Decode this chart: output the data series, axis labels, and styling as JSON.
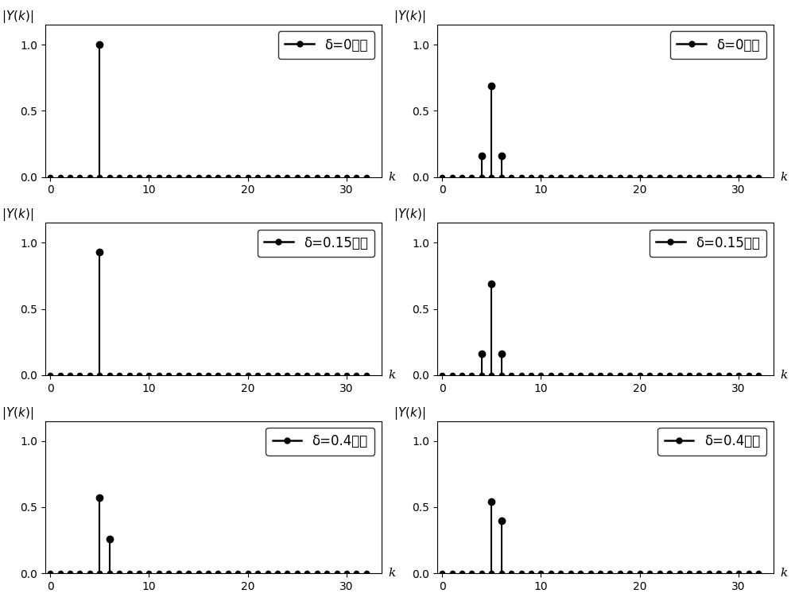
{
  "subplots": [
    {
      "title_legend": "δ=0无窗",
      "stems_k": [
        5
      ],
      "stems_v": [
        1.0
      ],
      "ylim": [
        0,
        1.15
      ]
    },
    {
      "title_legend": "δ=0双窗",
      "stems_k": [
        4,
        5,
        6
      ],
      "stems_v": [
        0.16,
        0.69,
        0.16
      ],
      "ylim": [
        0,
        1.15
      ]
    },
    {
      "title_legend": "δ=0.15无窗",
      "stems_k": [
        5
      ],
      "stems_v": [
        0.93
      ],
      "ylim": [
        0,
        1.15
      ]
    },
    {
      "title_legend": "δ=0.15双窗",
      "stems_k": [
        4,
        5,
        6
      ],
      "stems_v": [
        0.16,
        0.69,
        0.16
      ],
      "ylim": [
        0,
        1.15
      ]
    },
    {
      "title_legend": "δ=0.4无窗",
      "stems_k": [
        5,
        6
      ],
      "stems_v": [
        0.57,
        0.26
      ],
      "ylim": [
        0,
        1.15
      ]
    },
    {
      "title_legend": "δ=0.4双窗",
      "stems_k": [
        5,
        6
      ],
      "stems_v": [
        0.54,
        0.4
      ],
      "ylim": [
        0,
        1.15
      ]
    }
  ],
  "xlim": [
    -0.5,
    33.5
  ],
  "xticks": [
    0,
    10,
    20,
    30
  ],
  "yticks": [
    0,
    0.5,
    1
  ],
  "xlabel": "k",
  "dot_color": "#000000",
  "stem_color": "#000000",
  "dot_markersize": 4.5,
  "stem_markersize": 6,
  "linewidth": 1.5,
  "background": "#ffffff",
  "legend_fontsize": 12,
  "tick_fontsize": 10
}
